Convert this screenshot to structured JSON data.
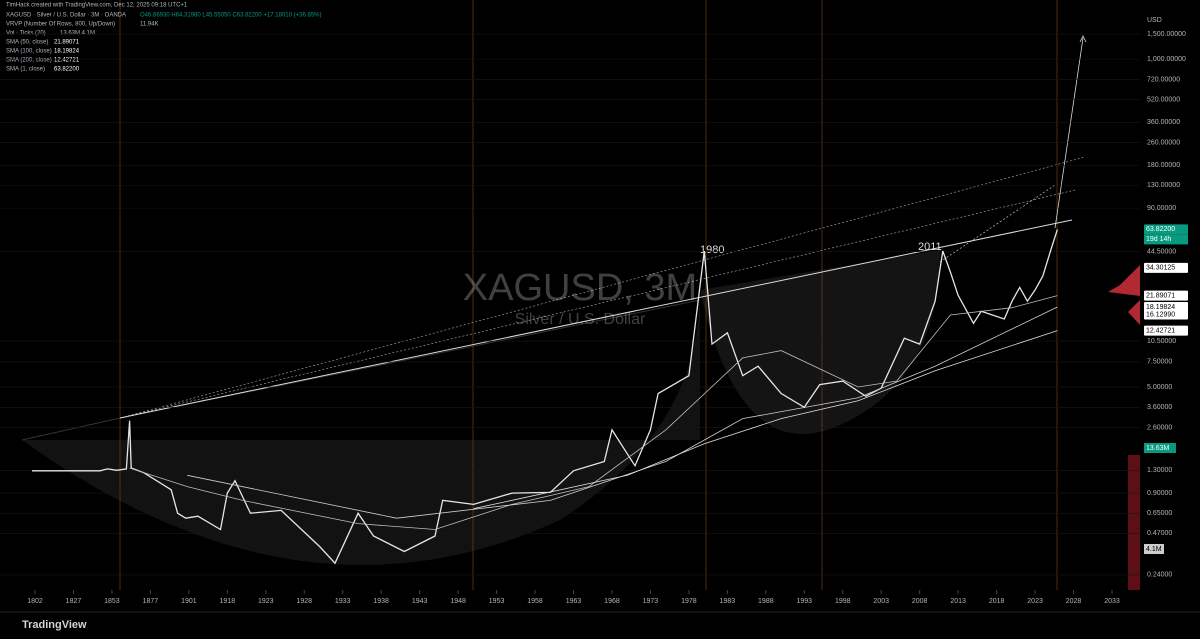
{
  "header": {
    "credit": "TimHack created with TradingView.com, Dec 12, 2025 09:18 UTC+1",
    "symbol": "XAGUSD · Silver / U.S. Dollar · 3M · OANDA",
    "ohlc": "O46.66930 H64.31980 L45.55050 C63.82200 +17.18010 (+36.85%)",
    "vrvp": "VRVP (Number Of Rows, 800, Up/Down)",
    "vrvp_value": "11.94K",
    "volume": "Vol · Ticks (20)",
    "volume_value": "13.63M 4.1M",
    "watermark": "XAGUSD, 3M",
    "watermark_sub": "Silver / U.S. Dollar",
    "brand": "TradingView"
  },
  "chart_data": {
    "type": "line",
    "log_y": true,
    "currency": "USD",
    "annotations": [
      "1980",
      "2011"
    ],
    "volume_labels": [
      "13.63M",
      "4.1M"
    ],
    "countdown": "19d 14h",
    "xlim": [
      1779,
      2037
    ],
    "xticks": [
      1802,
      1827,
      1853,
      1877,
      1901,
      1918,
      1923,
      1928,
      1933,
      1938,
      1943,
      1948,
      1953,
      1958,
      1963,
      1968,
      1973,
      1978,
      1983,
      1988,
      1993,
      1998,
      2003,
      2008,
      2013,
      2018,
      2023,
      2028,
      2033
    ],
    "ylim": [
      0.188,
      2600
    ],
    "yticks": [
      {
        "value": 1500,
        "label": "1,500.00000"
      },
      {
        "value": 1000,
        "label": "1,000.00000"
      },
      {
        "value": 720,
        "label": "720.00000"
      },
      {
        "value": 520,
        "label": "520.00000"
      },
      {
        "value": 360,
        "label": "360.00000"
      },
      {
        "value": 260,
        "label": "260.00000"
      },
      {
        "value": 180,
        "label": "180.00000"
      },
      {
        "value": 130,
        "label": "130.00000"
      },
      {
        "value": 90,
        "label": "90.00000"
      },
      {
        "value": 44.5,
        "label": "44.50000"
      },
      {
        "value": 10.5,
        "label": "10.50000"
      },
      {
        "value": 7.5,
        "label": "7.50000"
      },
      {
        "value": 5,
        "label": "5.00000"
      },
      {
        "value": 3.6,
        "label": "3.60000"
      },
      {
        "value": 2.6,
        "label": "2.60000"
      },
      {
        "value": 1.3,
        "label": "1.30000"
      },
      {
        "value": 0.9,
        "label": "0.90000"
      },
      {
        "value": 0.65,
        "label": "0.65000"
      },
      {
        "value": 0.47,
        "label": "0.47000"
      },
      {
        "value": 0.24,
        "label": "0.24000"
      }
    ],
    "price_labels": [
      {
        "value": 63.822,
        "label": "63.82200",
        "color": "#089981"
      },
      {
        "value": 34.30125,
        "label": "34.30125",
        "color": "#ffffff"
      },
      {
        "value": 21.89071,
        "label": "21.89071",
        "color": "#ffffff"
      },
      {
        "value": 18.19824,
        "label": "18.19824",
        "color": "#ffffff"
      },
      {
        "value": 16.1299,
        "label": "16.12990",
        "color": "#ffffff"
      },
      {
        "value": 12.42721,
        "label": "12.42721",
        "color": "#ffffff"
      }
    ],
    "series": [
      {
        "name": "SMA (1, close)",
        "legend_value": "63.82200",
        "color": "#e6e6e6",
        "width": 1.3,
        "x": [
          1800,
          1845,
          1850,
          1856,
          1862,
          1864,
          1865,
          1873,
          1890,
          1894,
          1899,
          1905,
          1915,
          1918,
          1919,
          1921,
          1925,
          1930,
          1932,
          1935,
          1937,
          1941,
          1945,
          1946,
          1950,
          1955,
          1960,
          1963,
          1967,
          1968,
          1971,
          1973,
          1974,
          1978,
          1980,
          1981,
          1983,
          1985,
          1987,
          1990,
          1993,
          1995,
          1998,
          2001,
          2003,
          2006,
          2008,
          2010,
          2011,
          2012,
          2013,
          2015,
          2016,
          2019,
          2020,
          2021,
          2022,
          2023,
          2024,
          2025,
          2025.9
        ],
        "values": [
          1.29,
          1.29,
          1.33,
          1.3,
          1.33,
          2.9,
          1.35,
          1.25,
          0.95,
          0.65,
          0.6,
          0.62,
          0.5,
          0.9,
          1.1,
          0.65,
          0.68,
          0.38,
          0.29,
          0.65,
          0.45,
          0.35,
          0.45,
          0.8,
          0.75,
          0.9,
          0.91,
          1.29,
          1.5,
          2.5,
          1.4,
          2.5,
          4.5,
          6,
          45,
          10,
          12,
          6,
          7,
          4.5,
          3.6,
          5.2,
          5.5,
          4.3,
          4.9,
          11,
          10,
          20,
          45,
          32,
          22,
          14,
          17,
          15,
          20,
          25,
          20,
          24,
          30,
          45,
          63.822
        ]
      },
      {
        "name": "SMA (50, close)",
        "legend_value": "21.89071",
        "color": "#bdbdbd",
        "width": 0.8,
        "x": [
          1864,
          1900,
          1920,
          1935,
          1945,
          1955,
          1965,
          1975,
          1985,
          1990,
          2000,
          2005,
          2012,
          2020,
          2025.9
        ],
        "values": [
          1.35,
          1.0,
          0.8,
          0.55,
          0.5,
          0.75,
          1.0,
          2.5,
          8,
          9,
          5,
          5.5,
          16,
          18,
          21.89071
        ]
      },
      {
        "name": "SMA (100, close)",
        "legend_value": "18.19824",
        "color": "#d0d0d0",
        "width": 0.8,
        "x": [
          1900,
          1940,
          1960,
          1975,
          1985,
          2000,
          2010,
          2025.9
        ],
        "values": [
          1.2,
          0.6,
          0.8,
          1.5,
          3.0,
          4.2,
          7,
          18.19824
        ]
      },
      {
        "name": "SMA (200, close)",
        "legend_value": "12.42721",
        "color": "#e0e0e0",
        "width": 0.8,
        "x": [
          1950,
          1970,
          1980,
          1990,
          2000,
          2010,
          2025.9
        ],
        "values": [
          0.7,
          1.2,
          2.0,
          3.0,
          4.0,
          6.5,
          12.42721
        ]
      }
    ]
  }
}
